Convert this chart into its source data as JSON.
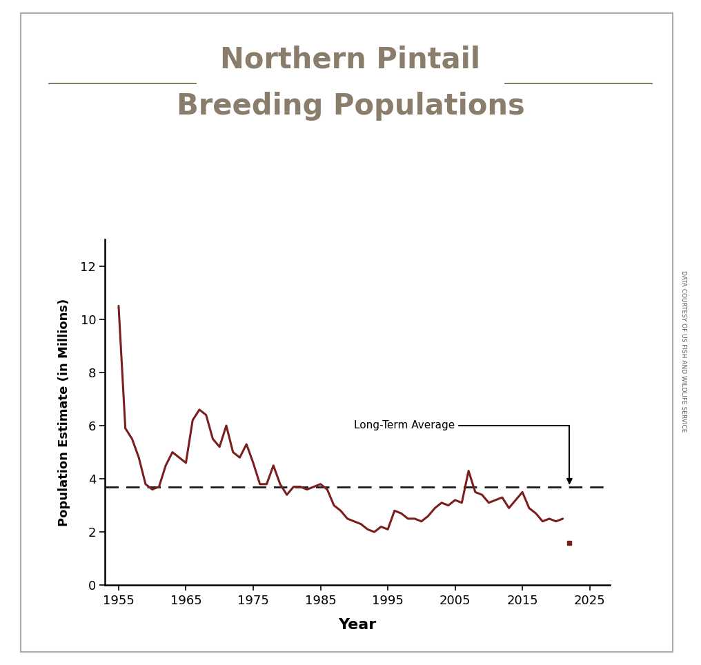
{
  "title_line1": "Northern Pintail",
  "title_line2": "Breeding Populations",
  "title_color": "#8b7d6b",
  "xlabel": "Year",
  "ylabel": "Population Estimate (in Millions)",
  "line_color": "#7a1e1e",
  "avg_color": "#1a1a1a",
  "long_term_avg": 3.7,
  "avg_label": "Long-Term Average",
  "background_color": "#ffffff",
  "side_label": "DATA COURTESY OF US FISH AND WILDLIFE SERVICE",
  "years": [
    1955,
    1956,
    1957,
    1958,
    1959,
    1960,
    1961,
    1962,
    1963,
    1964,
    1965,
    1966,
    1967,
    1968,
    1969,
    1970,
    1971,
    1972,
    1973,
    1974,
    1975,
    1976,
    1977,
    1978,
    1979,
    1980,
    1981,
    1982,
    1983,
    1984,
    1985,
    1986,
    1987,
    1988,
    1989,
    1990,
    1991,
    1992,
    1993,
    1994,
    1995,
    1996,
    1997,
    1998,
    1999,
    2000,
    2001,
    2002,
    2003,
    2004,
    2005,
    2006,
    2007,
    2008,
    2009,
    2010,
    2011,
    2012,
    2013,
    2014,
    2015,
    2016,
    2017,
    2018,
    2019,
    2020,
    2021
  ],
  "values": [
    10.5,
    5.9,
    5.5,
    4.8,
    3.8,
    3.6,
    3.7,
    4.5,
    5.0,
    4.8,
    4.6,
    6.2,
    6.6,
    6.4,
    5.5,
    5.2,
    6.0,
    5.0,
    4.8,
    5.3,
    4.6,
    3.8,
    3.8,
    4.5,
    3.8,
    3.4,
    3.7,
    3.7,
    3.6,
    3.7,
    3.8,
    3.6,
    3.0,
    2.8,
    2.5,
    2.4,
    2.3,
    2.1,
    2.0,
    2.2,
    2.1,
    2.8,
    2.7,
    2.5,
    2.5,
    2.4,
    2.6,
    2.9,
    3.1,
    3.0,
    3.2,
    3.1,
    4.3,
    3.5,
    3.4,
    3.1,
    3.2,
    3.3,
    2.9,
    3.2,
    3.5,
    2.9,
    2.7,
    2.4,
    2.5,
    2.4,
    2.5
  ],
  "dot_year": 2022,
  "dot_value": 1.6,
  "xlim": [
    1953,
    2028
  ],
  "ylim": [
    0,
    13.0
  ],
  "yticks": [
    0,
    2,
    4,
    6,
    8,
    10,
    12
  ],
  "xticks": [
    1955,
    1965,
    1975,
    1985,
    1995,
    2005,
    2015,
    2025
  ]
}
